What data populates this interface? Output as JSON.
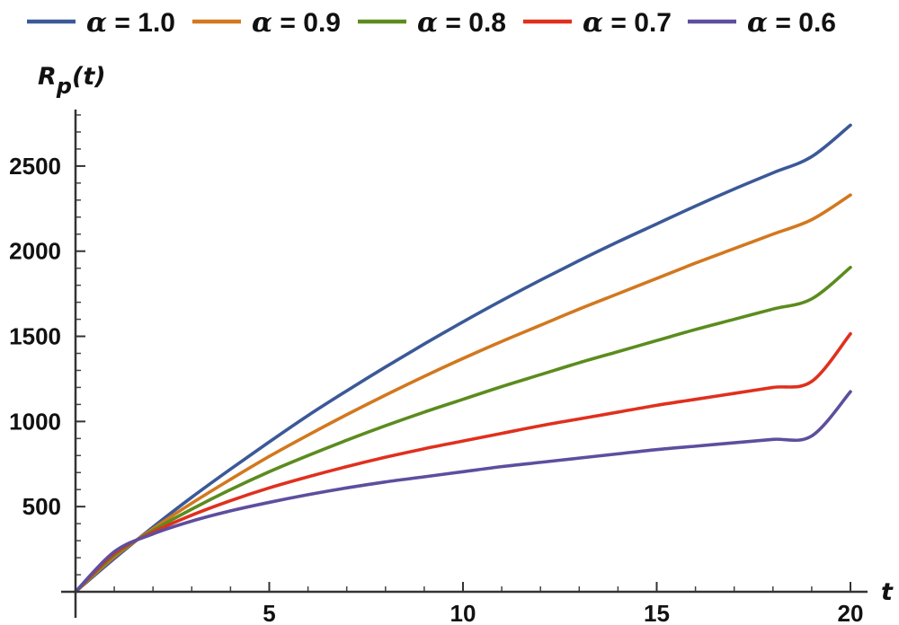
{
  "chart_data": {
    "type": "line",
    "xlabel": "t",
    "ylabel_main": "R",
    "ylabel_sub": "p",
    "ylabel_arg": "(t)",
    "xlim": [
      0,
      20
    ],
    "ylim": [
      0,
      2800
    ],
    "x_ticks": [
      5,
      10,
      15,
      20
    ],
    "x_tick_labels": [
      "5",
      "10",
      "15",
      "20"
    ],
    "y_ticks": [
      500,
      1000,
      1500,
      2000,
      2500
    ],
    "y_tick_labels": [
      "500",
      "1000",
      "1500",
      "2000",
      "2500"
    ],
    "x_minor_step": 1,
    "y_minor_step": 100,
    "grid": false,
    "legend_position": "top",
    "series": [
      {
        "name": "α = 1.0",
        "symbol": "α",
        "eq": " = ",
        "value": "1.0",
        "color": "#3B5998",
        "x": [
          0,
          1,
          2,
          3,
          4,
          5,
          6,
          7,
          8,
          9,
          10,
          11,
          12,
          13,
          14,
          15,
          16,
          17,
          18,
          19,
          20
        ],
        "y": [
          0,
          195,
          380,
          555,
          720,
          880,
          1035,
          1180,
          1320,
          1455,
          1585,
          1710,
          1830,
          1945,
          2055,
          2160,
          2265,
          2365,
          2460,
          2555,
          2740
        ]
      },
      {
        "name": "α = 0.9",
        "symbol": "α",
        "eq": " = ",
        "value": "0.9",
        "color": "#D2781E",
        "x": [
          0,
          1,
          2,
          3,
          4,
          5,
          6,
          7,
          8,
          9,
          10,
          11,
          12,
          13,
          14,
          15,
          16,
          17,
          18,
          19,
          20
        ],
        "y": [
          0,
          205,
          370,
          520,
          660,
          795,
          920,
          1040,
          1155,
          1265,
          1370,
          1470,
          1565,
          1660,
          1750,
          1840,
          1930,
          2015,
          2100,
          2185,
          2330
        ]
      },
      {
        "name": "α = 0.8",
        "symbol": "α",
        "eq": " = ",
        "value": "0.8",
        "color": "#5B8C1E",
        "x": [
          0,
          1,
          2,
          3,
          4,
          5,
          6,
          7,
          8,
          9,
          10,
          11,
          12,
          13,
          14,
          15,
          16,
          17,
          18,
          19,
          20
        ],
        "y": [
          0,
          215,
          360,
          485,
          600,
          705,
          800,
          890,
          975,
          1055,
          1130,
          1205,
          1275,
          1345,
          1410,
          1475,
          1540,
          1600,
          1660,
          1720,
          1905
        ]
      },
      {
        "name": "α = 0.7",
        "symbol": "α",
        "eq": " = ",
        "value": "0.7",
        "color": "#E0301E",
        "x": [
          0,
          1,
          2,
          3,
          4,
          5,
          6,
          7,
          8,
          9,
          10,
          11,
          12,
          13,
          14,
          15,
          16,
          17,
          18,
          19,
          20
        ],
        "y": [
          0,
          225,
          350,
          450,
          535,
          610,
          675,
          735,
          790,
          840,
          885,
          930,
          975,
          1015,
          1055,
          1095,
          1130,
          1165,
          1200,
          1235,
          1515
        ]
      },
      {
        "name": "α = 0.6",
        "symbol": "α",
        "eq": " = ",
        "value": "0.6",
        "color": "#5E4E9E",
        "x": [
          0,
          1,
          2,
          3,
          4,
          5,
          6,
          7,
          8,
          9,
          10,
          11,
          12,
          13,
          14,
          15,
          16,
          17,
          18,
          19,
          20
        ],
        "y": [
          0,
          235,
          340,
          415,
          475,
          525,
          570,
          610,
          645,
          675,
          705,
          735,
          760,
          785,
          810,
          835,
          855,
          875,
          895,
          915,
          1175
        ]
      }
    ]
  }
}
